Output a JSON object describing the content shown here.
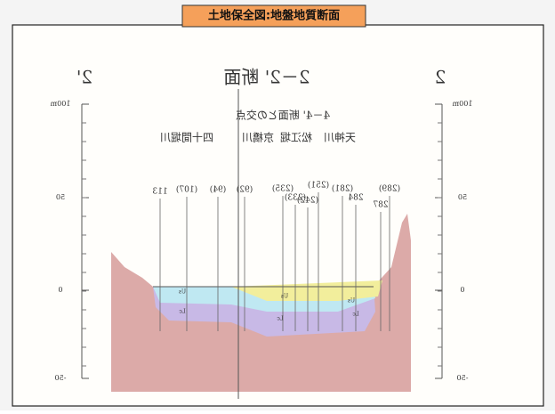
{
  "title": "土地保全図:地盤地質断面",
  "section": {
    "left_label": "2'",
    "title": "2－2' 断面",
    "right_label": "2"
  },
  "intersection_label": "4－4' 断面との交点",
  "rivers": [
    "天神川",
    "松江堀",
    "京橋川",
    "四十間堀川"
  ],
  "scale_left": [
    "100m",
    "50",
    "0",
    "-50"
  ],
  "scale_right": [
    "100m",
    "50",
    "0",
    "-50"
  ],
  "boreholes": [
    "113",
    "(107)",
    "(94)",
    "(92)",
    "(235)",
    "(233)",
    "(242)",
    "(251)",
    "(281)",
    "284",
    "(289)",
    "287"
  ],
  "layer_labels": [
    "Us",
    "Lc",
    "Us",
    "Lc",
    "Us",
    "Lc"
  ]
}
